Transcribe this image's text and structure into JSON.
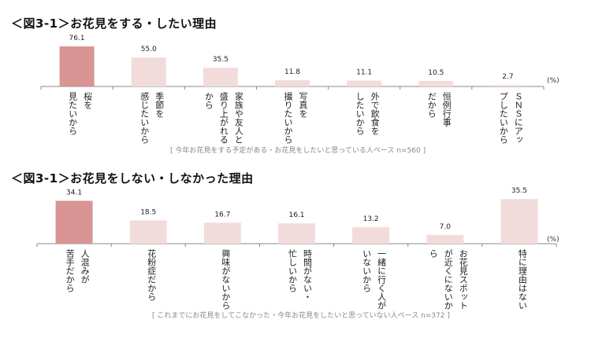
{
  "chart_data": [
    {
      "type": "bar",
      "title": "＜図3-1＞お花見をする・したい理由",
      "unit": "(%)",
      "note": "[ 今年お花見をする予定がある・お花見をしたいと思っている人ベース n=560 ]",
      "categories": [
        [
          "桜を",
          "見たいから"
        ],
        [
          "季節を",
          "感じたいから"
        ],
        [
          "家族や友人と",
          "盛り上がれる",
          "から"
        ],
        [
          "写真を",
          "撮りたいから"
        ],
        [
          "外で飲食を",
          "したいから"
        ],
        [
          "恒例行事",
          "だから"
        ],
        [
          "ＳＮＳにアッ",
          "プしたいから"
        ]
      ],
      "values": [
        76.1,
        55.0,
        35.5,
        11.8,
        11.1,
        10.5,
        2.7
      ],
      "labels": [
        "76.1",
        "55.0",
        "35.5",
        "11.8",
        "11.1",
        "10.5",
        "2.7"
      ],
      "ylim": [
        0,
        100
      ],
      "highlight_color": "#d99594",
      "bar_color": "#f2dcdb"
    },
    {
      "type": "bar",
      "title": "＜図3-1＞お花見をしない・しなかった理由",
      "unit": "(%)",
      "note": "[ これまでにお花見をしてこなかった・今年お花見をしたいと思っていない人ベース n=372 ]",
      "categories": [
        [
          "人混みが",
          "苦手だから"
        ],
        [
          "花粉症だから"
        ],
        [
          "興味がないから"
        ],
        [
          "時間がない・",
          "忙しいから"
        ],
        [
          "一緒に行く人が",
          "いないから"
        ],
        [
          "お花見スポット",
          "が近くにないか",
          "ら"
        ],
        [
          "特に理由はない"
        ]
      ],
      "values": [
        34.1,
        18.5,
        16.7,
        16.1,
        13.2,
        7.0,
        35.5
      ],
      "labels": [
        "34.1",
        "18.5",
        "16.7",
        "16.1",
        "13.2",
        "7.0",
        "35.5"
      ],
      "ylim": [
        0,
        40
      ],
      "highlight_color": "#d99594",
      "bar_color": "#f2dcdb"
    }
  ]
}
